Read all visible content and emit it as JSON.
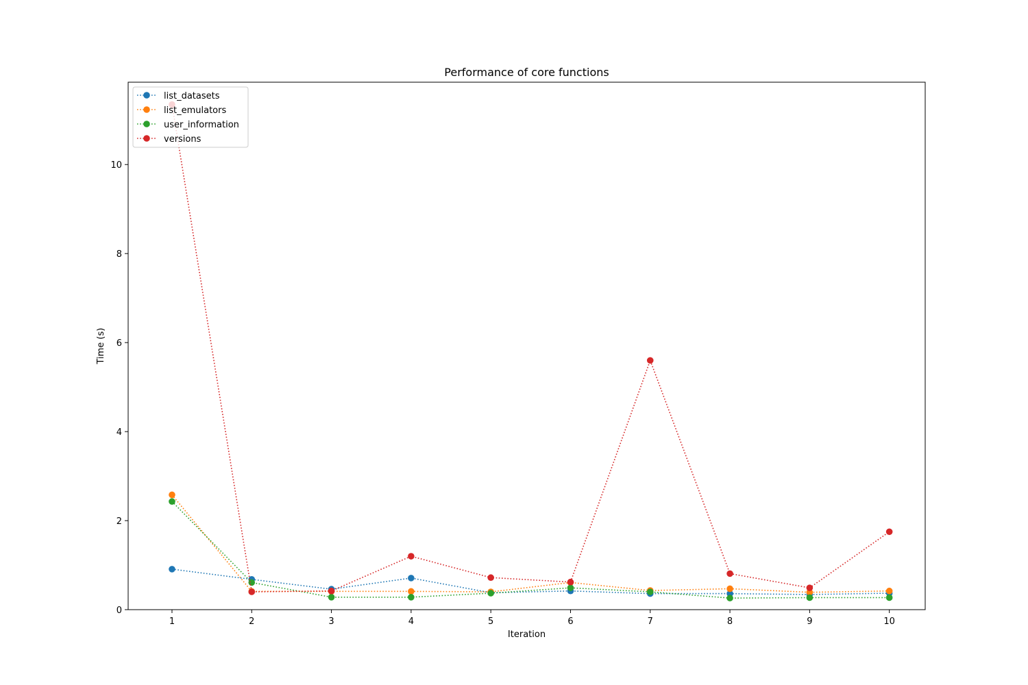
{
  "chart_data": {
    "type": "line",
    "title": "Performance of core functions",
    "xlabel": "Iteration",
    "ylabel": "Time (s)",
    "x": [
      1,
      2,
      3,
      4,
      5,
      6,
      7,
      8,
      9,
      10
    ],
    "xticks": [
      1,
      2,
      3,
      4,
      5,
      6,
      7,
      8,
      9,
      10
    ],
    "yticks": [
      0,
      2,
      4,
      6,
      8,
      10
    ],
    "xlim": [
      0.45,
      10.45
    ],
    "ylim": [
      0,
      11.85
    ],
    "grid": false,
    "legend_position": "upper-left",
    "line_style": "dotted",
    "marker": "circle",
    "series": [
      {
        "name": "list_datasets",
        "color": "#1f77b4",
        "values": [
          0.91,
          0.68,
          0.46,
          0.71,
          0.38,
          0.42,
          0.36,
          0.36,
          0.34,
          0.37
        ]
      },
      {
        "name": "list_emulators",
        "color": "#ff7f0e",
        "values": [
          2.58,
          0.41,
          0.41,
          0.41,
          0.4,
          0.61,
          0.43,
          0.47,
          0.39,
          0.42
        ]
      },
      {
        "name": "user_information",
        "color": "#2ca02c",
        "values": [
          2.43,
          0.61,
          0.28,
          0.28,
          0.37,
          0.49,
          0.4,
          0.26,
          0.27,
          0.27
        ]
      },
      {
        "name": "versions",
        "color": "#d62728",
        "values": [
          11.35,
          0.4,
          0.42,
          1.2,
          0.72,
          0.62,
          5.6,
          0.81,
          0.49,
          1.75
        ]
      }
    ]
  }
}
